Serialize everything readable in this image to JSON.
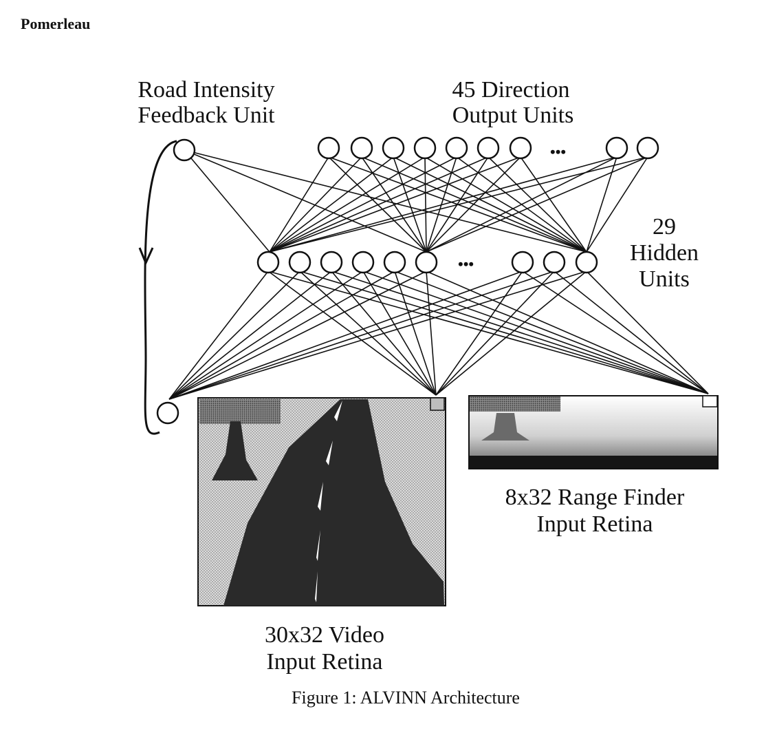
{
  "header": {
    "author": "Pomerleau"
  },
  "labels": {
    "feedback_line1": "Road Intensity",
    "feedback_line2": "Feedback Unit",
    "output_line1": "45 Direction",
    "output_line2": "Output Units",
    "hidden_line1": "29",
    "hidden_line2": "Hidden",
    "hidden_line3": "Units",
    "video_line1": "30x32 Video",
    "video_line2": "Input Retina",
    "range_line1": "8x32 Range Finder",
    "range_line2": "Input Retina",
    "ellipsis": "•••"
  },
  "caption": "Figure 1:  ALVINN Architecture",
  "colors": {
    "ink": "#111111",
    "dark_fill": "#2a2a2a",
    "light_fill": "#d6d6d6",
    "mid_fill": "#9a9a9a"
  }
}
